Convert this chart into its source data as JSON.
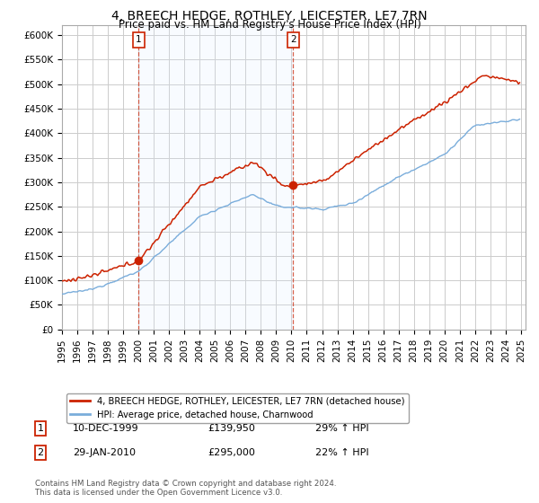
{
  "title": "4, BREECH HEDGE, ROTHLEY, LEICESTER, LE7 7RN",
  "subtitle": "Price paid vs. HM Land Registry's House Price Index (HPI)",
  "ylim": [
    0,
    620000
  ],
  "yticks": [
    0,
    50000,
    100000,
    150000,
    200000,
    250000,
    300000,
    350000,
    400000,
    450000,
    500000,
    550000,
    600000
  ],
  "hpi_color": "#7aaddb",
  "price_color": "#cc2200",
  "vline_color": "#cc2200",
  "shade_color": "#ddeeff",
  "transaction1": {
    "date": "10-DEC-1999",
    "price": 139950,
    "label": "1",
    "year": 2000.0,
    "hpi_pct": "29% ↑ HPI"
  },
  "transaction2": {
    "date": "29-JAN-2010",
    "price": 295000,
    "label": "2",
    "year": 2010.1,
    "hpi_pct": "22% ↑ HPI"
  },
  "legend_label_price": "4, BREECH HEDGE, ROTHLEY, LEICESTER, LE7 7RN (detached house)",
  "legend_label_hpi": "HPI: Average price, detached house, Charnwood",
  "footnote": "Contains HM Land Registry data © Crown copyright and database right 2024.\nThis data is licensed under the Open Government Licence v3.0.",
  "background_color": "#ffffff",
  "grid_color": "#cccccc",
  "title_fontsize": 10,
  "subtitle_fontsize": 8.5,
  "tick_fontsize": 7.5
}
